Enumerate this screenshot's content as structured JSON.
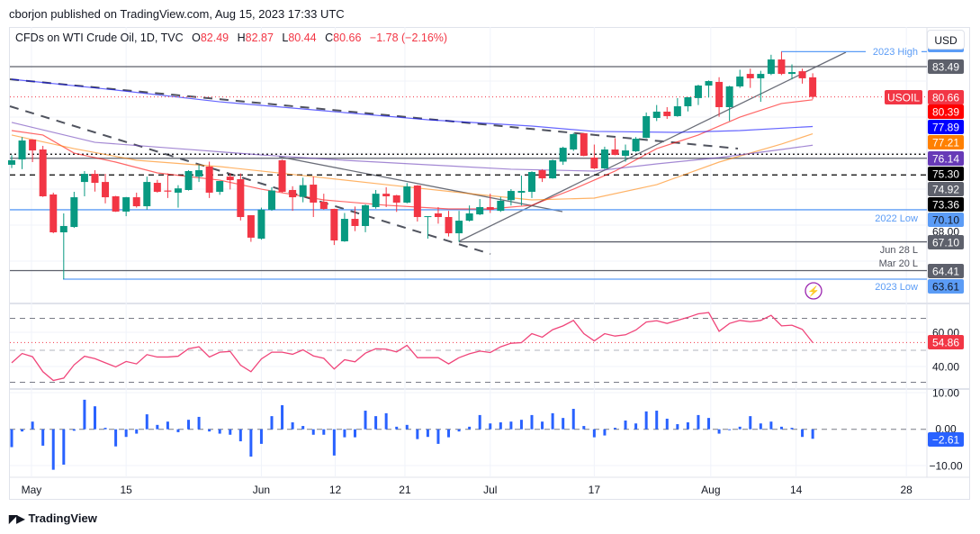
{
  "published": "cborjon published on TradingView.com, Aug 15, 2023 17:33 UTC",
  "legend": {
    "symbol": "CFDs on WTI Crude Oil, 1D, TVC",
    "open_label": "O",
    "open": "82.49",
    "high_label": "H",
    "high": "82.87",
    "low_label": "L",
    "low": "80.44",
    "close_label": "C",
    "close": "80.66",
    "change": "−1.78 (−2.16%)"
  },
  "currency_button": "USD",
  "logo": "TradingView",
  "colors": {
    "up": "#089981",
    "down": "#f23645",
    "ma_red": "#ff0000",
    "ma_blue": "#0000ff",
    "ma_orange": "#ff8000",
    "ma_purple": "#673ab7",
    "rsi": "#f0457a",
    "momentum": "#2962ff",
    "level_blue": "#5b9cf6"
  },
  "chart_data": [
    {
      "type": "candlestick",
      "symbol": "USOIL",
      "ylim": [
        62.6,
        86.2
      ],
      "candles": [
        [
          74.31,
          75.2,
          74.0,
          74.73
        ],
        [
          74.81,
          76.9,
          73.9,
          76.58
        ],
        [
          76.67,
          76.7,
          74.56,
          75.65
        ],
        [
          75.74,
          76.08,
          71.3,
          71.36
        ],
        [
          71.53,
          71.7,
          67.9,
          67.99
        ],
        [
          67.99,
          69.76,
          63.61,
          68.58
        ],
        [
          68.49,
          71.78,
          68.4,
          71.27
        ],
        [
          72.7,
          73.72,
          71.36,
          73.46
        ],
        [
          73.46,
          73.8,
          71.8,
          72.62
        ],
        [
          72.7,
          73.46,
          70.7,
          71.27
        ],
        [
          71.36,
          71.4,
          69.9,
          69.93
        ],
        [
          69.93,
          71.3,
          69.5,
          71.27
        ],
        [
          71.27,
          71.7,
          70.3,
          70.43
        ],
        [
          70.43,
          73.2,
          70.1,
          72.7
        ],
        [
          72.62,
          72.9,
          71.7,
          71.78
        ],
        [
          71.9,
          73.5,
          71.2,
          71.8
        ],
        [
          71.7,
          72.4,
          70.3,
          72.1
        ],
        [
          71.95,
          73.8,
          71.9,
          73.72
        ],
        [
          73.2,
          74.3,
          72.7,
          73.8
        ],
        [
          74.14,
          74.6,
          71.2,
          71.7
        ],
        [
          71.78,
          72.8,
          71.5,
          72.79
        ],
        [
          73.2,
          73.5,
          72.0,
          72.87
        ],
        [
          72.96,
          73.5,
          69.1,
          69.42
        ],
        [
          69.59,
          69.6,
          67.1,
          67.49
        ],
        [
          67.4,
          70.3,
          67.3,
          70.1
        ],
        [
          70.1,
          72.2,
          70.0,
          71.9
        ],
        [
          74.73,
          74.8,
          71.7,
          71.78
        ],
        [
          71.95,
          72.3,
          70.0,
          71.27
        ],
        [
          71.3,
          73.1,
          70.8,
          72.4
        ],
        [
          72.45,
          73.2,
          69.42,
          70.77
        ],
        [
          70.85,
          71.6,
          70.1,
          70.18
        ],
        [
          70.18,
          70.2,
          66.8,
          67.23
        ],
        [
          67.15,
          69.8,
          67.1,
          69.25
        ],
        [
          69.25,
          70.4,
          68.1,
          68.58
        ],
        [
          68.58,
          70.6,
          68.0,
          70.52
        ],
        [
          70.35,
          71.95,
          70.2,
          71.6
        ],
        [
          71.6,
          72.2,
          70.35,
          71.36
        ],
        [
          71.45,
          71.5,
          69.9,
          70.77
        ],
        [
          70.77,
          72.6,
          70.7,
          72.28
        ],
        [
          72.37,
          72.4,
          69.0,
          69.42
        ],
        [
          69.42,
          69.5,
          67.4,
          69.5
        ],
        [
          69.76,
          70.35,
          68.8,
          69.42
        ],
        [
          69.42,
          70.0,
          67.6,
          67.9
        ],
        [
          67.9,
          70.0,
          67.1,
          69.08
        ],
        [
          69.08,
          70.5,
          69.0,
          69.76
        ],
        [
          69.67,
          71.1,
          69.6,
          70.35
        ],
        [
          70.35,
          71.6,
          69.8,
          70.1
        ],
        [
          70.0,
          71.3,
          69.9,
          70.94
        ],
        [
          71.0,
          72.03,
          70.5,
          71.86
        ],
        [
          71.7,
          73.3,
          70.5,
          71.86
        ],
        [
          71.78,
          73.7,
          71.2,
          73.63
        ],
        [
          73.8,
          73.9,
          72.7,
          73.04
        ],
        [
          73.04,
          74.8,
          73.0,
          74.73
        ],
        [
          74.6,
          76.0,
          74.3,
          75.9
        ],
        [
          75.74,
          77.3,
          75.6,
          77.17
        ],
        [
          77.26,
          77.3,
          75.1,
          75.15
        ],
        [
          74.98,
          76.2,
          73.9,
          73.97
        ],
        [
          73.97,
          76.0,
          73.9,
          75.74
        ],
        [
          75.74,
          76.8,
          75.2,
          75.23
        ],
        [
          75.15,
          76.2,
          74.6,
          75.65
        ],
        [
          75.57,
          76.9,
          75.5,
          76.75
        ],
        [
          76.83,
          79.2,
          76.8,
          78.86
        ],
        [
          78.69,
          79.9,
          78.4,
          79.28
        ],
        [
          79.28,
          79.7,
          78.6,
          78.86
        ],
        [
          78.86,
          80.55,
          78.8,
          79.78
        ],
        [
          79.78,
          80.6,
          79.3,
          80.63
        ],
        [
          80.55,
          81.8,
          79.9,
          81.72
        ],
        [
          81.72,
          82.2,
          80.6,
          82.14
        ],
        [
          82.06,
          82.5,
          78.8,
          79.7
        ],
        [
          79.7,
          81.7,
          78.4,
          81.64
        ],
        [
          81.64,
          83.2,
          81.5,
          82.56
        ],
        [
          82.81,
          83.3,
          81.5,
          82.4
        ],
        [
          82.4,
          83.1,
          80.2,
          82.81
        ],
        [
          82.81,
          84.6,
          82.7,
          84.16
        ],
        [
          84.16,
          84.89,
          82.7,
          82.81
        ],
        [
          82.81,
          83.7,
          82.3,
          82.98
        ],
        [
          83.06,
          83.3,
          81.9,
          82.4
        ],
        [
          82.49,
          82.87,
          80.44,
          80.66
        ]
      ],
      "moving_averages": [
        {
          "color": "#ff0000",
          "last": "80.39",
          "points": [
            [
              0,
              77.51
            ],
            [
              3,
              77.09
            ],
            [
              6,
              75.4
            ],
            [
              10,
              74.56
            ],
            [
              14,
              73.55
            ],
            [
              20,
              72.87
            ],
            [
              24,
              72.03
            ],
            [
              30,
              71.02
            ],
            [
              36,
              70.52
            ],
            [
              42,
              70.18
            ],
            [
              46,
              70.18
            ],
            [
              50,
              70.52
            ],
            [
              54,
              72.03
            ],
            [
              58,
              73.72
            ],
            [
              62,
              75.82
            ],
            [
              66,
              77.09
            ],
            [
              70,
              78.77
            ],
            [
              74,
              80.04
            ],
            [
              77,
              80.39
            ]
          ]
        },
        {
          "color": "#0000ff",
          "last": "77.89",
          "points": [
            [
              0,
              82.31
            ],
            [
              10,
              81.3
            ],
            [
              20,
              80.2
            ],
            [
              30,
              79.36
            ],
            [
              40,
              78.52
            ],
            [
              50,
              77.93
            ],
            [
              56,
              77.43
            ],
            [
              64,
              77.34
            ],
            [
              70,
              77.51
            ],
            [
              77,
              77.89
            ]
          ]
        },
        {
          "color": "#ff8000",
          "last": "77.21",
          "points": [
            [
              0,
              77.09
            ],
            [
              6,
              75.82
            ],
            [
              12,
              74.73
            ],
            [
              20,
              74.14
            ],
            [
              28,
              73.3
            ],
            [
              36,
              72.45
            ],
            [
              44,
              71.61
            ],
            [
              50,
              71.02
            ],
            [
              56,
              71.19
            ],
            [
              62,
              72.45
            ],
            [
              68,
              74.56
            ],
            [
              74,
              76.25
            ],
            [
              77,
              77.21
            ]
          ]
        },
        {
          "color": "#673ab7",
          "last": "76.14",
          "points": [
            [
              0,
              78.27
            ],
            [
              8,
              76.41
            ],
            [
              16,
              75.82
            ],
            [
              24,
              75.23
            ],
            [
              32,
              74.73
            ],
            [
              40,
              74.31
            ],
            [
              48,
              73.89
            ],
            [
              56,
              73.72
            ],
            [
              62,
              74.39
            ],
            [
              68,
              74.98
            ],
            [
              74,
              75.74
            ],
            [
              77,
              76.14
            ]
          ]
        }
      ],
      "levels": [
        {
          "price": "84.89",
          "label": "2023 High",
          "color": "#5b9cf6",
          "style": "solid"
        },
        {
          "price": "83.49",
          "label": "",
          "color": "#5d606b",
          "style": "solid"
        },
        {
          "price": "75.30",
          "label": "",
          "color": "#000000",
          "style": "dotted"
        },
        {
          "price": "74.92",
          "label": "",
          "color": "#5d606b",
          "style": "solid"
        },
        {
          "price": "73.36",
          "label": "",
          "color": "#000000",
          "style": "dashed"
        },
        {
          "price": "70.10",
          "label": "2022 Low",
          "color": "#5b9cf6",
          "style": "solid"
        },
        {
          "price": "67.10",
          "label": "Jun 28 L",
          "color": "#5d606b",
          "style": "solid"
        },
        {
          "price": "64.41",
          "label": "Mar 20 L",
          "color": "#5d606b",
          "style": "solid"
        },
        {
          "price": "63.61",
          "label": "2023 Low",
          "color": "#5b9cf6",
          "style": "solid"
        }
      ],
      "last_price": {
        "label": "USOIL",
        "price": "80.66"
      },
      "axis_tick": "68.00",
      "x_ticks": [
        {
          "label": "May",
          "bar": 1.9
        },
        {
          "label": "15",
          "bar": 11.0
        },
        {
          "label": "Jun",
          "bar": 24.0
        },
        {
          "label": "12",
          "bar": 31.1
        },
        {
          "label": "21",
          "bar": 37.8
        },
        {
          "label": "Jul",
          "bar": 46.0
        },
        {
          "label": "17",
          "bar": 56.0
        },
        {
          "label": "Aug",
          "bar": 67.2
        },
        {
          "label": "14",
          "bar": 75.4
        },
        {
          "label": "28",
          "bar": 86.0
        }
      ]
    },
    {
      "type": "line",
      "indicator": "RSI",
      "ylim": [
        20,
        80
      ],
      "levels": [
        70,
        50,
        30
      ],
      "y_ticks": [
        "60.00",
        "40.00"
      ],
      "last": "54.86",
      "values": [
        42.2,
        48.0,
        46.0,
        36.6,
        31.1,
        32.6,
        40.9,
        46.3,
        44.8,
        42.2,
        39.6,
        43.0,
        41.5,
        47.3,
        45.8,
        45.8,
        46.3,
        51.0,
        52.2,
        45.8,
        48.8,
        49.3,
        40.7,
        36.6,
        44.6,
        48.8,
        48.8,
        47.5,
        50.3,
        46.5,
        45.0,
        38.3,
        44.1,
        42.8,
        48.2,
        51.0,
        50.7,
        49.0,
        53.1,
        45.4,
        45.4,
        45.4,
        41.5,
        45.4,
        47.8,
        49.5,
        48.6,
        52.2,
        54.4,
        54.8,
        60.4,
        58.2,
        62.9,
        65.3,
        68.7,
        60.4,
        55.9,
        60.4,
        58.9,
        59.7,
        62.7,
        67.7,
        68.5,
        66.8,
        68.7,
        70.6,
        72.8,
        73.6,
        61.9,
        66.8,
        68.7,
        67.9,
        68.7,
        71.9,
        65.3,
        65.7,
        63.1,
        54.86
      ]
    },
    {
      "type": "bar",
      "indicator": "Momentum",
      "ylim": [
        -15,
        15
      ],
      "y_ticks": [
        "10.00",
        "0.00",
        "−10.00"
      ],
      "last": "−2.61",
      "values": [
        -4.9,
        -0.6,
        2.1,
        -4.5,
        -11.1,
        -9.7,
        -0.4,
        8.1,
        6.3,
        0.4,
        -4.7,
        -2.1,
        -1.2,
        4.1,
        1.2,
        2.1,
        -0.8,
        2.6,
        3.4,
        -0.6,
        -1.2,
        -1.5,
        -3.3,
        -7.5,
        -4.0,
        3.6,
        6.6,
        1.9,
        0.9,
        -1.5,
        -1.5,
        -7.2,
        -2.2,
        -2.2,
        5.1,
        3.6,
        4.4,
        0.7,
        1.2,
        -2.7,
        -2.1,
        -4.0,
        -2.2,
        -0.6,
        0.7,
        3.9,
        1.6,
        1.9,
        2.1,
        2.6,
        3.9,
        2.1,
        4.4,
        3.1,
        5.6,
        0.9,
        -2.2,
        -1.7,
        0.4,
        2.4,
        1.6,
        4.9,
        5.1,
        2.9,
        1.4,
        1.9,
        3.9,
        3.1,
        -1.2,
        -0.2,
        0.7,
        3.6,
        1.6,
        2.1,
        0.7,
        0.4,
        -2.1,
        -2.61
      ]
    }
  ]
}
